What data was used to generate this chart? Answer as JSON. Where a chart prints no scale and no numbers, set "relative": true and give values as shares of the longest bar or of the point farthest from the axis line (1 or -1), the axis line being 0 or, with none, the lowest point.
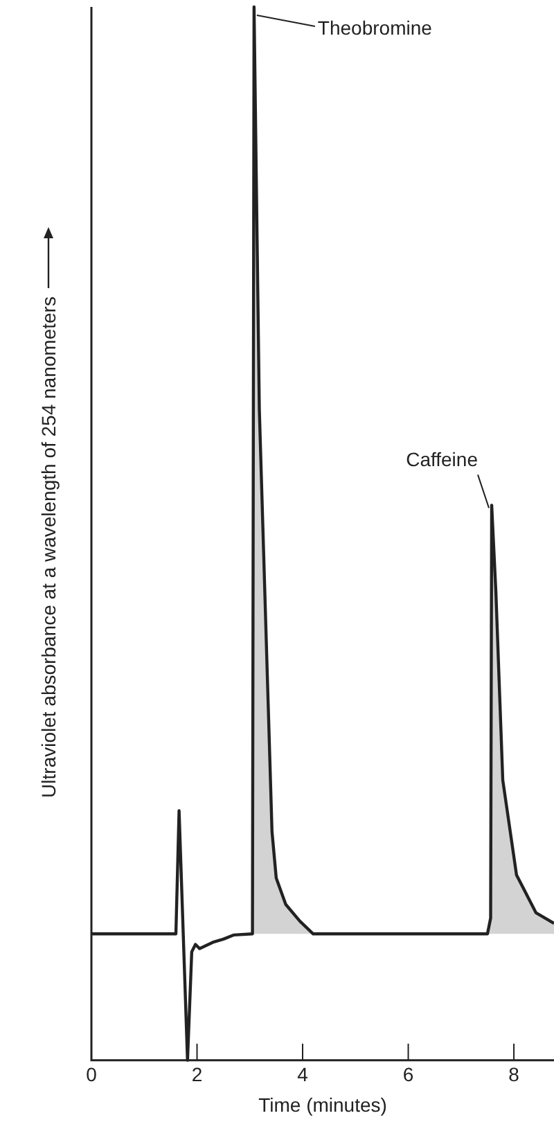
{
  "chart_data": {
    "type": "line",
    "relative": true,
    "xlabel": "Time (minutes)",
    "ylabel": "Ultraviolet absorbance at a wavelength of 254 nanometers",
    "x": [
      0,
      1.6,
      1.66,
      1.82,
      1.9,
      1.97,
      2.05,
      2.3,
      2.5,
      2.7,
      3.05,
      3.08,
      3.18,
      3.42,
      3.5,
      3.68,
      3.95,
      4.2,
      7.5,
      7.56,
      7.58,
      7.66,
      7.79,
      8.05,
      8.42,
      8.76
    ],
    "values": [
      0.12,
      0.12,
      0.237,
      0,
      0.103,
      0.11,
      0.106,
      0.112,
      0.115,
      0.119,
      0.12,
      1,
      0.618,
      0.217,
      0.173,
      0.148,
      0.132,
      0.12,
      0.12,
      0.135,
      0.527,
      0.444,
      0.266,
      0.176,
      0.14,
      0.13
    ],
    "color": "#222222",
    "lower": [
      null,
      null,
      null,
      null,
      null,
      null,
      null,
      null,
      null,
      null,
      0.12,
      0.12,
      0.12,
      0.12,
      0.12,
      0.12,
      0.12,
      0.12,
      0.12,
      0.12,
      0.12,
      0.12,
      0.12,
      0.12,
      0.12,
      0.12
    ],
    "upper": [
      null,
      null,
      null,
      null,
      null,
      null,
      null,
      null,
      null,
      null,
      0.12,
      1,
      0.618,
      0.217,
      0.173,
      0.148,
      0.132,
      0.12,
      0.12,
      0.135,
      0.527,
      0.444,
      0.266,
      0.176,
      0.14,
      0.13
    ],
    "xlim": [
      0,
      8.76
    ],
    "xticks": [
      0,
      2,
      4,
      6,
      8
    ],
    "annotations": [
      {
        "text": "Theobromine",
        "x": 3.08,
        "y": 1
      },
      {
        "text": "Caffeine",
        "x": 7.58,
        "y": 0.527
      }
    ],
    "grid": false,
    "legend": false,
    "marker": "none",
    "line_style": "solid"
  }
}
